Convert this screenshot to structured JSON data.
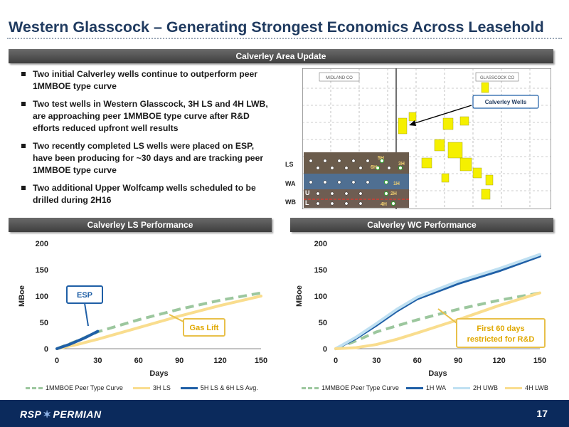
{
  "title": "Western Glasscock – Generating Strongest Economics Across Leasehold",
  "update_header": "Calverley Area Update",
  "bullets": [
    "Two initial Calverley wells continue to outperform peer 1MMBOE type curve",
    "Two test wells in Western Glasscock, 3H LS and 4H LWB, are approaching peer 1MMBOE type curve after R&D efforts reduced upfront well results",
    "Two recently completed LS wells were placed on ESP, have been producing for ~30 days and are tracking peer 1MMBOE type curve",
    "Two additional Upper Wolfcamp wells scheduled to be drilled during 2H16"
  ],
  "map": {
    "county_left": "MIDLAND CO",
    "county_right": "GLASSCOCK CO",
    "callout": "Calverley Wells",
    "zones": [
      "LS",
      "WA",
      "WB"
    ],
    "zone_subs": [
      "U",
      "L"
    ],
    "well_labels": [
      "5H",
      "3H",
      "6H",
      "1H",
      "2H",
      "4H"
    ],
    "colors": {
      "lease": "#f5f000",
      "strip1": "#6b5c4c",
      "strip2": "#4f6f92",
      "strip3": "#6e5d52"
    }
  },
  "footer": {
    "logo_left": "RSP",
    "logo_right": "PERMIAN",
    "page": "17"
  },
  "chart_data": [
    {
      "type": "line",
      "header": "Calverley LS Performance",
      "xlabel": "Days",
      "ylabel": "MBoe",
      "xlim": [
        0,
        150
      ],
      "ylim": [
        0,
        200
      ],
      "xticks": [
        "0",
        "30",
        "60",
        "90",
        "120",
        "150"
      ],
      "yticks": [
        "0",
        "50",
        "100",
        "150",
        "200"
      ],
      "annotations": [
        "ESP",
        "Gas Lift"
      ],
      "series": [
        {
          "name": "1MMBOE Peer Type Curve",
          "color": "#9cc79e",
          "dashed": true,
          "x": [
            0,
            15,
            30,
            60,
            90,
            120,
            150
          ],
          "y": [
            0,
            15,
            32,
            55,
            75,
            92,
            106
          ]
        },
        {
          "name": "3H LS",
          "color": "#f9dd8e",
          "dashed": false,
          "x": [
            0,
            15,
            30,
            60,
            90,
            120,
            150
          ],
          "y": [
            0,
            8,
            18,
            40,
            62,
            82,
            100
          ]
        },
        {
          "name": "5H LS & 6H LS Avg.",
          "color": "#1f5fa6",
          "dashed": false,
          "x": [
            0,
            10,
            20,
            30
          ],
          "y": [
            0,
            9,
            20,
            33
          ]
        }
      ]
    },
    {
      "type": "line",
      "header": "Calverley WC Performance",
      "xlabel": "Days",
      "ylabel": "MBoe",
      "xlim": [
        0,
        150
      ],
      "ylim": [
        0,
        200
      ],
      "xticks": [
        "0",
        "30",
        "60",
        "90",
        "120",
        "150"
      ],
      "yticks": [
        "0",
        "50",
        "100",
        "150",
        "200"
      ],
      "annotations": [
        "First 60 days restricted for R&D"
      ],
      "series": [
        {
          "name": "1MMBOE Peer Type Curve",
          "color": "#9cc79e",
          "dashed": true,
          "x": [
            0,
            15,
            30,
            60,
            90,
            120,
            150
          ],
          "y": [
            0,
            15,
            32,
            55,
            75,
            92,
            106
          ]
        },
        {
          "name": "1H WA",
          "color": "#1f5fa6",
          "dashed": false,
          "x": [
            0,
            15,
            30,
            45,
            60,
            90,
            120,
            150
          ],
          "y": [
            0,
            20,
            45,
            72,
            95,
            124,
            148,
            176
          ]
        },
        {
          "name": "2H UWB",
          "color": "#bfe0f2",
          "dashed": false,
          "x": [
            0,
            15,
            30,
            45,
            60,
            90,
            120,
            150
          ],
          "y": [
            0,
            22,
            48,
            75,
            98,
            128,
            152,
            179
          ]
        },
        {
          "name": "4H LWB",
          "color": "#f9dd8e",
          "dashed": false,
          "x": [
            0,
            15,
            30,
            45,
            60,
            90,
            120,
            150
          ],
          "y": [
            0,
            2,
            8,
            18,
            30,
            55,
            82,
            106
          ]
        }
      ]
    }
  ]
}
